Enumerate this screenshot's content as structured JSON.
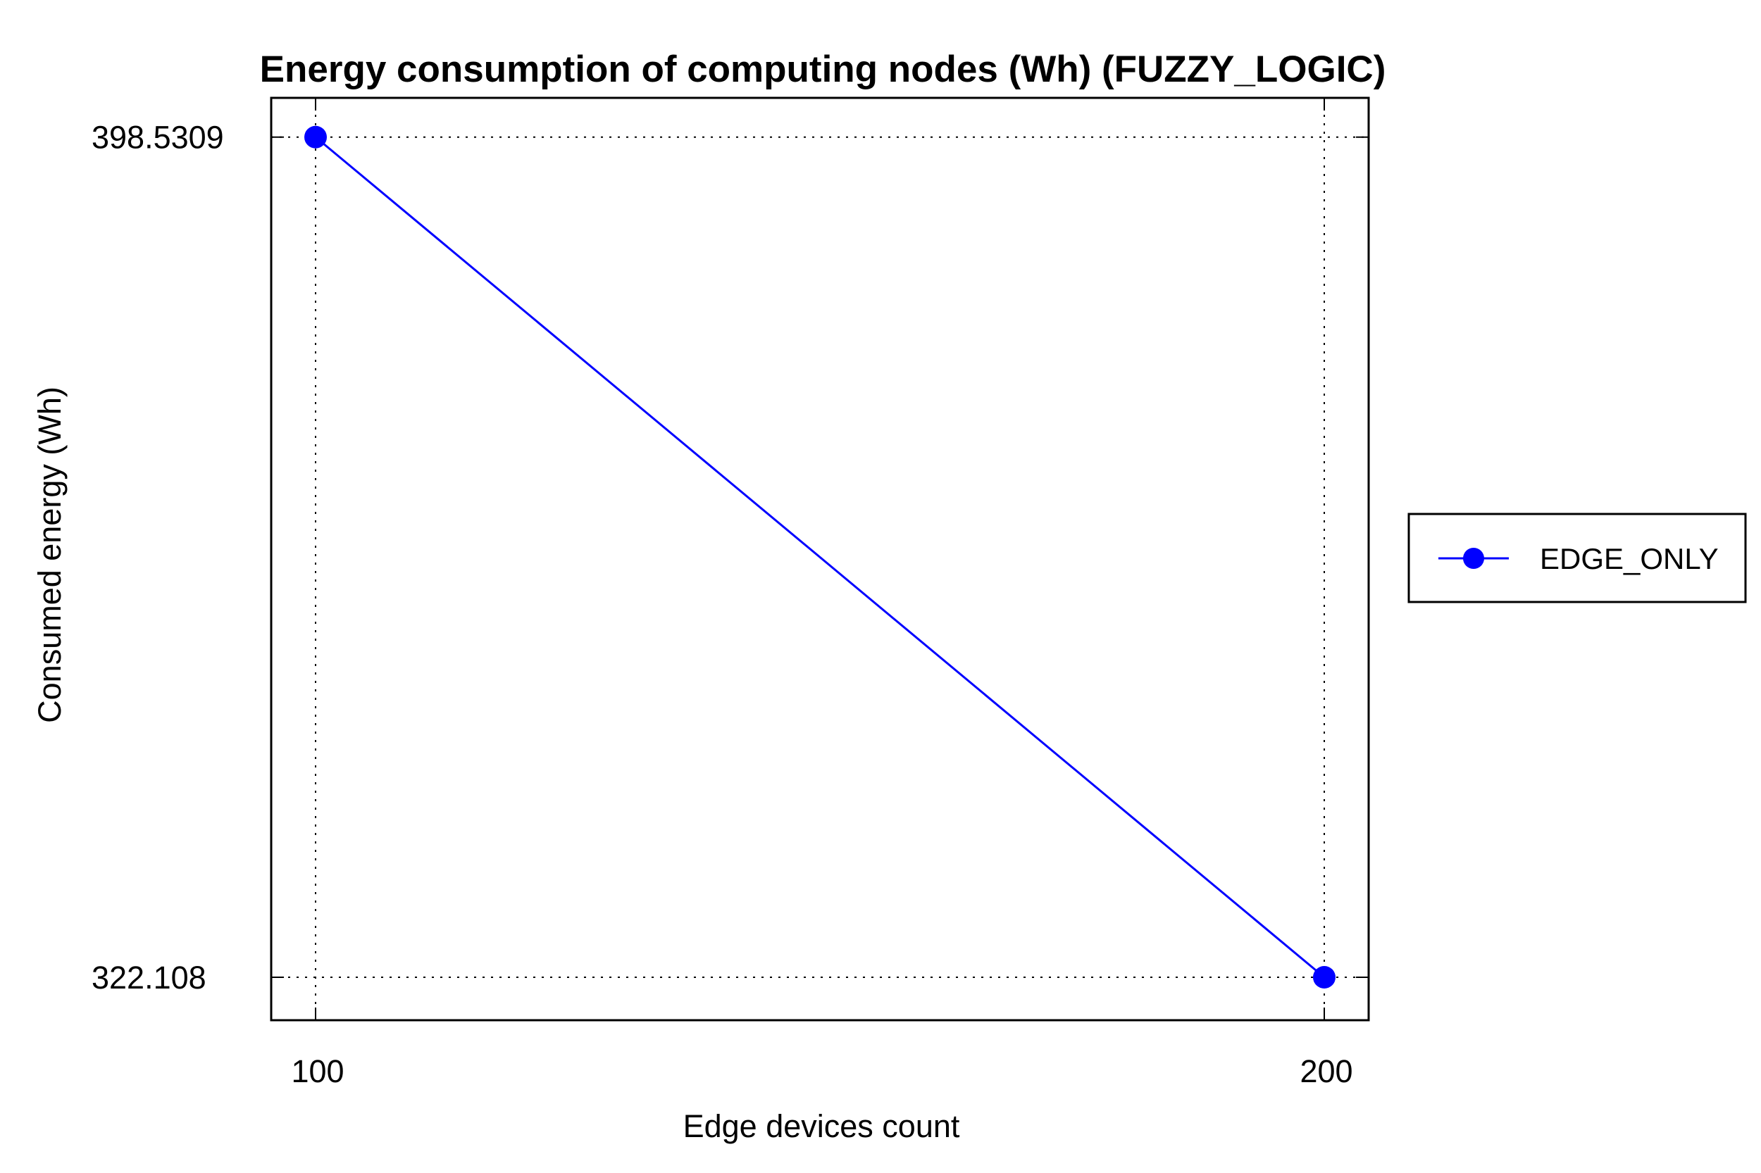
{
  "chart_data": {
    "type": "line",
    "title": "Energy consumption of computing nodes (Wh) (FUZZY_LOGIC)",
    "xlabel": "Edge devices count",
    "ylabel": "Consumed energy (Wh)",
    "x_ticks": [
      "100",
      "200"
    ],
    "y_ticks": [
      "398.5309",
      "322.108"
    ],
    "xlim": [
      95.6,
      204.4
    ],
    "ylim": [
      318.2,
      402.1
    ],
    "grid": true,
    "legend_position": "right",
    "series": [
      {
        "name": "EDGE_ONLY",
        "color": "#0000ff",
        "x": [
          100,
          200
        ],
        "y": [
          398.5309,
          322.108
        ]
      }
    ]
  }
}
